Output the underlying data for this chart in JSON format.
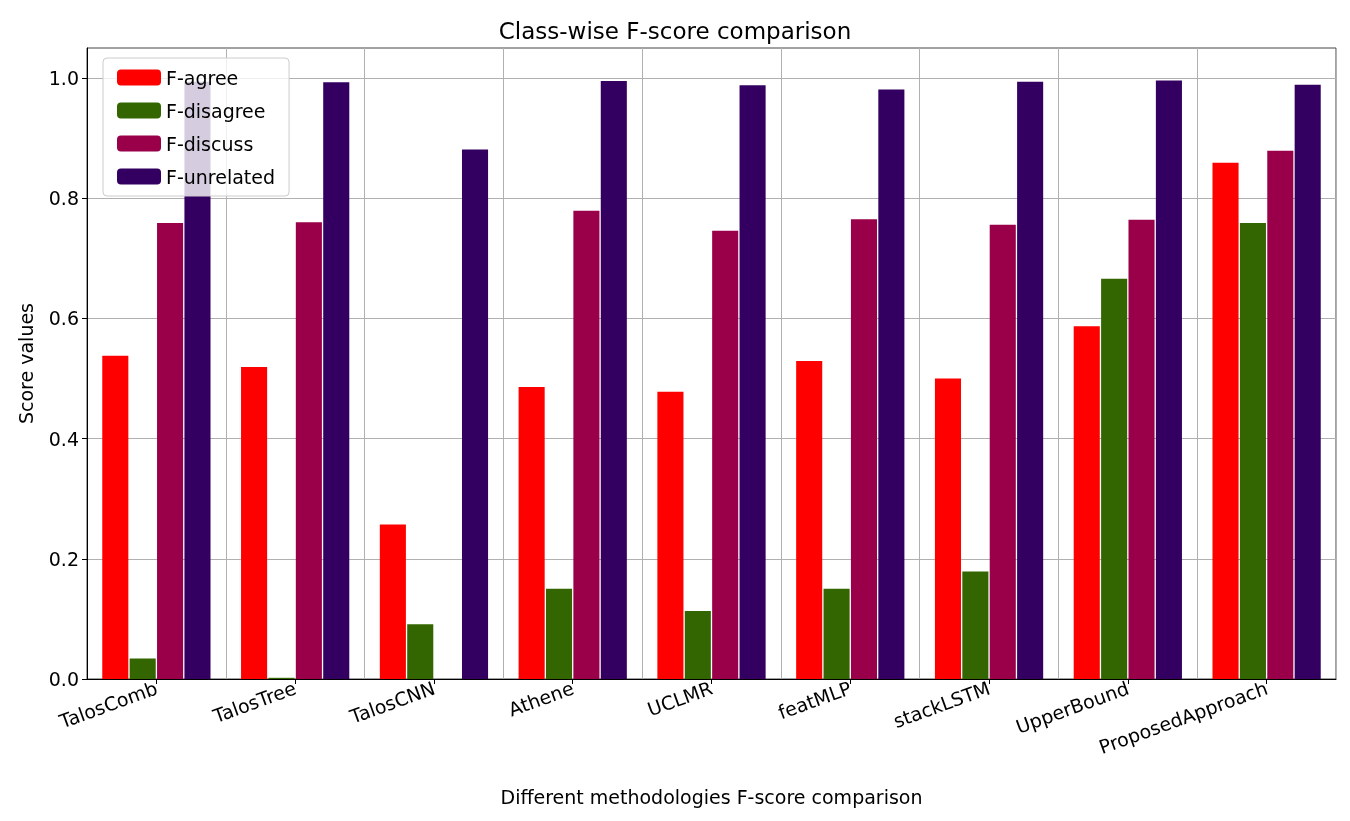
{
  "chart_data": {
    "type": "bar",
    "title": "Class-wise F-score comparison",
    "xlabel": "Different methodologies F-score comparison",
    "ylabel": "Score values",
    "categories": [
      "TalosComb",
      "TalosTree",
      "TalosCNN",
      "Athene",
      "UCLMR",
      "featMLP",
      "stackLSTM",
      "UpperBound",
      "ProposedApproach"
    ],
    "series": [
      {
        "name": "F-agree",
        "color": "#ff0000",
        "values": [
          0.538,
          0.519,
          0.257,
          0.486,
          0.478,
          0.529,
          0.5,
          0.587,
          0.859
        ]
      },
      {
        "name": "F-disagree",
        "color": "#336600",
        "values": [
          0.034,
          0.002,
          0.091,
          0.15,
          0.113,
          0.15,
          0.179,
          0.666,
          0.759
        ]
      },
      {
        "name": "F-discuss",
        "color": "#990049",
        "values": [
          0.759,
          0.76,
          null,
          0.779,
          0.746,
          0.765,
          0.756,
          0.764,
          0.879
        ]
      },
      {
        "name": "F-unrelated",
        "color": "#330061",
        "values": [
          0.994,
          0.993,
          0.881,
          0.995,
          0.988,
          0.981,
          0.994,
          0.996,
          0.989
        ]
      }
    ],
    "ylim": [
      0,
      1.05
    ],
    "yticks": [
      {
        "value": 0,
        "label": "0.0"
      },
      {
        "value": 0.2,
        "label": "0.2"
      },
      {
        "value": 0.4,
        "label": "0.4"
      },
      {
        "value": 0.6,
        "label": "0.6"
      },
      {
        "value": 0.8,
        "label": "0.8"
      },
      {
        "value": 1,
        "label": "1.0"
      }
    ],
    "grid": true,
    "legend": "top left"
  }
}
